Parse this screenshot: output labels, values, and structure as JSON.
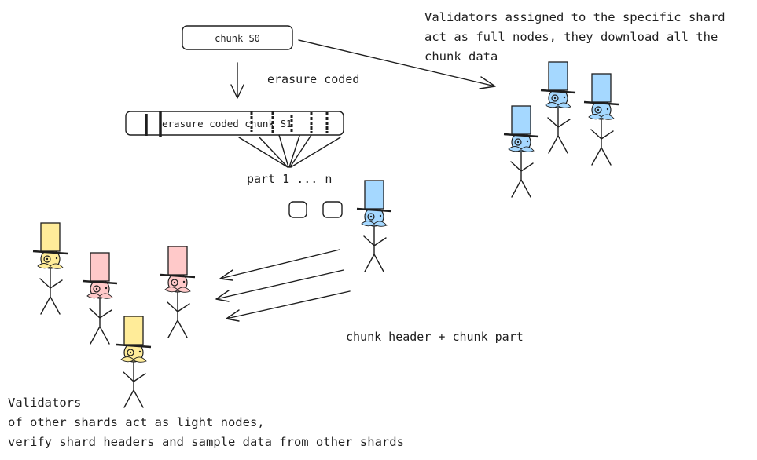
{
  "boxes": {
    "chunk": "chunk S0",
    "erasure": "erasure coded chunk S1"
  },
  "labels": {
    "erasure_coded": "erasure coded",
    "parts": "part 1 ... n",
    "header_part": "chunk header + chunk part"
  },
  "full_nodes_note": [
    "Validators assigned to the specific shard",
    "act as full nodes, they download all the",
    "chunk data"
  ],
  "light_nodes_note": [
    "Validators",
    "of other shards act as light nodes,",
    "verify shard headers and sample data from other shards"
  ],
  "colors": {
    "box_fill": "#a5d8ff",
    "full_node_hat": "#a5d8ff",
    "light_node_pink": "#ffc9c9",
    "light_node_yellow": "#ffec99",
    "stroke": "#1e1e1e"
  },
  "figures": [
    {
      "role": "full-node",
      "color": "#a5d8ff"
    },
    {
      "role": "full-node",
      "color": "#a5d8ff"
    },
    {
      "role": "full-node",
      "color": "#a5d8ff"
    },
    {
      "role": "full-node-sender",
      "color": "#a5d8ff"
    },
    {
      "role": "light-node",
      "color": "#ffec99"
    },
    {
      "role": "light-node",
      "color": "#ffc9c9"
    },
    {
      "role": "light-node",
      "color": "#ffc9c9"
    },
    {
      "role": "light-node",
      "color": "#ffec99"
    }
  ]
}
